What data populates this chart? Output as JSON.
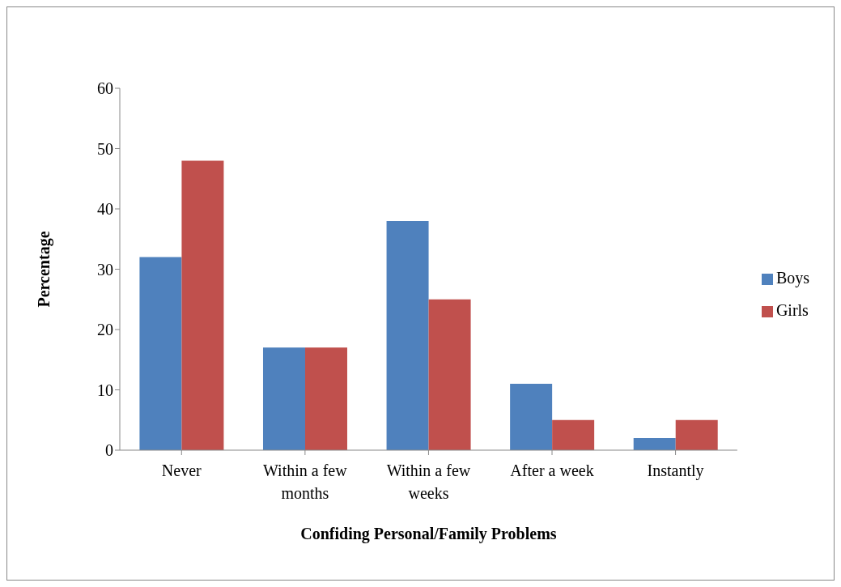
{
  "chart_data": {
    "type": "bar",
    "xlabel": "Confiding Personal/Family Problems",
    "ylabel": "Percentage",
    "categories": [
      "Never",
      "Within a few months",
      "Within a few weeks",
      "After a week",
      "Instantly"
    ],
    "series": [
      {
        "name": "Boys",
        "color": "#4f81bd",
        "values": [
          32,
          17,
          38,
          11,
          2
        ]
      },
      {
        "name": "Girls",
        "color": "#c0504d",
        "values": [
          48,
          17,
          25,
          5,
          5
        ]
      }
    ],
    "ylim": [
      0,
      60
    ],
    "yticks": [
      0,
      10,
      20,
      30,
      40,
      50,
      60
    ],
    "legend": "right"
  }
}
